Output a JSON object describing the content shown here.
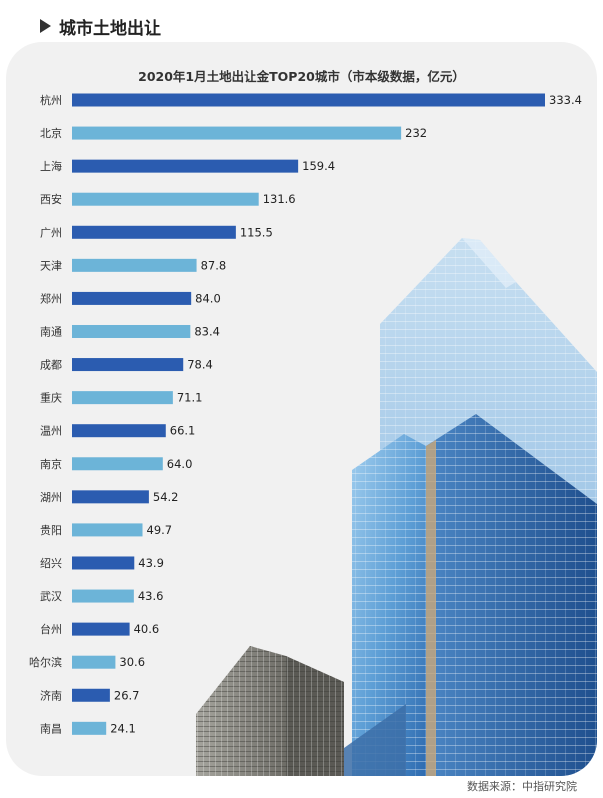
{
  "header": {
    "title": "城市土地出让"
  },
  "source": "数据来源：中指研究院",
  "colors": {
    "dark_bar": "#2b5cb0",
    "light_bar": "#6cb4d8",
    "card_bg": "#f1f1f1"
  },
  "chart_data": {
    "type": "bar",
    "orientation": "horizontal",
    "title": "2020年1月土地出让金TOP20城市（市本级数据，亿元）",
    "unit": "亿元",
    "categories": [
      "杭州",
      "北京",
      "上海",
      "西安",
      "广州",
      "天津",
      "郑州",
      "南通",
      "成都",
      "重庆",
      "温州",
      "南京",
      "湖州",
      "贵阳",
      "绍兴",
      "武汉",
      "台州",
      "哈尔滨",
      "济南",
      "南昌"
    ],
    "values": [
      333.4,
      232,
      159.4,
      131.6,
      115.5,
      87.8,
      84.0,
      83.4,
      78.4,
      71.1,
      66.1,
      64.0,
      54.2,
      49.7,
      43.9,
      43.6,
      40.6,
      30.6,
      26.7,
      24.1
    ],
    "value_labels": [
      "333.4",
      "232",
      "159.4",
      "131.6",
      "115.5",
      "87.8",
      "84.0",
      "83.4",
      "78.4",
      "71.1",
      "66.1",
      "64.0",
      "54.2",
      "49.7",
      "43.9",
      "43.6",
      "40.6",
      "30.6",
      "26.7",
      "24.1"
    ],
    "bar_colors": "alternating dark/light blue",
    "grid": false,
    "legend": "none",
    "xlim": [
      0,
      333.4
    ]
  }
}
